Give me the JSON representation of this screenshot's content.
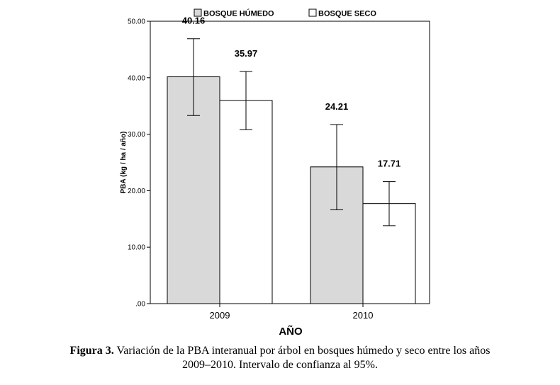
{
  "chart_data": {
    "type": "bar",
    "categories": [
      "2009",
      "2010"
    ],
    "series": [
      {
        "name": "BOSQUE HÚMEDO",
        "values": [
          40.16,
          24.21
        ],
        "ci_lower": [
          33.3,
          16.6
        ],
        "ci_upper": [
          46.9,
          31.7
        ],
        "color": "#d9d9d9"
      },
      {
        "name": "BOSQUE SECO",
        "values": [
          35.97,
          17.71
        ],
        "ci_lower": [
          30.8,
          13.8
        ],
        "ci_upper": [
          41.1,
          21.6
        ],
        "color": "#ffffff"
      }
    ],
    "data_labels": [
      [
        "40.16",
        "24.21"
      ],
      [
        "35.97",
        "17.71"
      ]
    ],
    "xlabel": "AÑO",
    "ylabel": "PBA (kg / ha / año)",
    "ylim": [
      0,
      50
    ],
    "yticks": [
      ".00",
      "10.00",
      "20.00",
      "30.00",
      "40.00",
      "50.00"
    ],
    "grid": false,
    "legend_position": "top-center"
  },
  "caption": {
    "label": "Figura 3.",
    "line1": " Variación de la PBA interanual por árbol en bosques húmedo y seco entre los años",
    "line2": "2009–2010. Intervalo de confianza al 95%."
  }
}
